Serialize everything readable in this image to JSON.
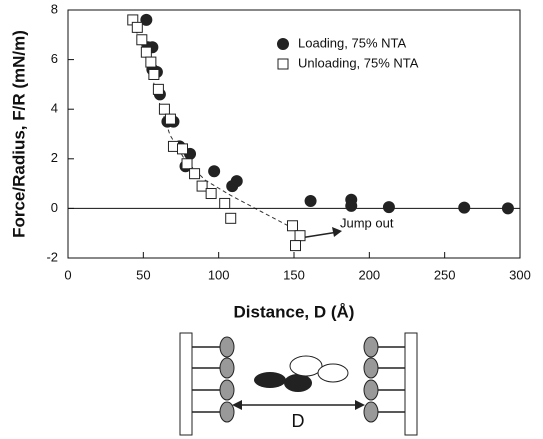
{
  "chart_data": {
    "type": "scatter",
    "xlabel": "Distance, D (Å)",
    "ylabel": "Force/Radius, F/R (mN/m)",
    "annotation": "Jump out",
    "xlim": [
      0,
      300
    ],
    "xticks": [
      0,
      50,
      100,
      150,
      200,
      250,
      300
    ],
    "ylim": [
      -2,
      8
    ],
    "yticks": [
      -2,
      0,
      2,
      4,
      6,
      8
    ],
    "zero_line": true,
    "series": [
      {
        "name": "Loading, 75% NTA",
        "marker": "circle",
        "color": "#222222",
        "x": [
          52,
          53,
          56,
          56,
          59,
          61,
          66,
          70,
          74,
          78,
          81,
          97,
          109,
          112,
          161,
          188,
          188,
          213,
          263,
          292
        ],
        "values": [
          7.6,
          6.5,
          6.5,
          5.6,
          5.5,
          4.6,
          3.5,
          3.5,
          2.5,
          1.7,
          2.2,
          1.5,
          0.9,
          1.1,
          0.3,
          0.35,
          0.1,
          0.05,
          0.03,
          0
        ]
      },
      {
        "name": "Unloading, 75% NTA",
        "marker": "square",
        "color": "#ffffff",
        "x": [
          43,
          46,
          49,
          52,
          55,
          57,
          60,
          64,
          68,
          70,
          76,
          79,
          84,
          89,
          95,
          104,
          108,
          149,
          154,
          151
        ],
        "values": [
          7.6,
          7.3,
          6.8,
          6.3,
          5.9,
          5.4,
          4.8,
          4.0,
          3.6,
          2.5,
          2.4,
          1.8,
          1.4,
          0.9,
          0.6,
          0.2,
          -0.4,
          -0.7,
          -1.1,
          -1.5
        ]
      }
    ]
  },
  "diagram": {
    "label": "D"
  }
}
